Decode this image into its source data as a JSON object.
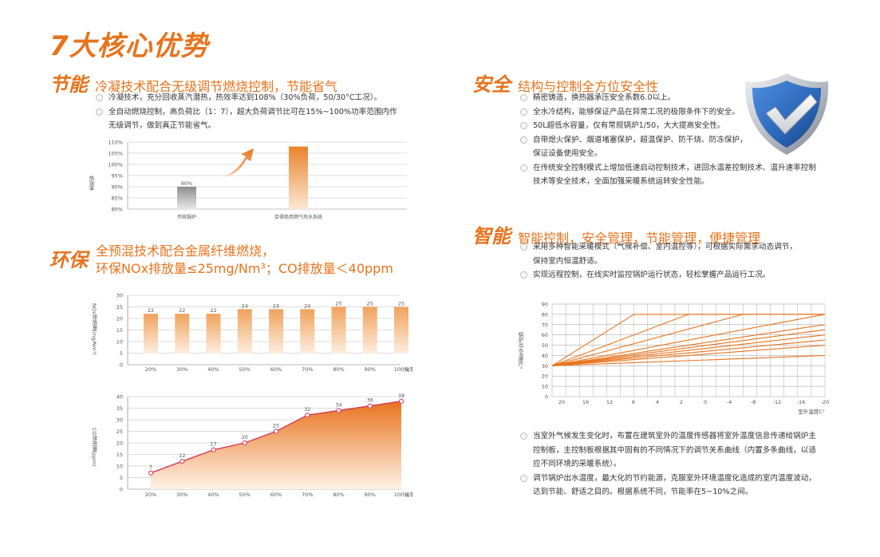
{
  "page_title": "7大核心优势",
  "sections": {
    "energy": {
      "keyword": "节能",
      "subtitle": "冷凝技术配合无级调节燃烧控制，节能省气",
      "bullets": [
        "冷凝技术，充分回收蒸汽潜热，热效率达到108%（30%负荷，50/30°C工况）。",
        "全自动燃烧控制，高负荷比（1：7），超大负荷调节比可在15%~100%功率范围内作",
        "无级调节，做到真正节能省气。"
      ]
    },
    "eco": {
      "keyword": "环保",
      "subtitle_line1": "全预混技术配合金属纤维燃烧，",
      "subtitle_line2": "环保NOx排放量≤25mg/Nm³；CO排放量＜40ppm"
    },
    "safety": {
      "keyword": "安全",
      "subtitle": "结构与控制全方位安全性",
      "bullets": [
        "精密铸造，换热器承压安全系数6.0以上。",
        "全水冷结构，能够保证产品在异常工况的极限条件下的安全。",
        "50L超低水容量，仅有常规锅炉1/50，大大提高安全性。",
        "自带熄火保护、烟道堵塞保护，超温保护、防干烧、防冻保护，",
        "保证设备使用安全。",
        "在传统安全控制模式上增加低速启动控制技术，进回水温差控制技术、温升速率控制",
        "技术等安全技术，全面加强采暖系统运转安全性能。"
      ]
    },
    "smart": {
      "keyword": "智能",
      "subtitle": "智能控制，安全管理，节能管理，便捷管理",
      "bullets_top": [
        "采用多种智能采暖模式（气候补偿、室内温控等），可根据实际需求动态调节，",
        "保持室内恒温舒适。",
        "实现远程控制，在线实时监控锅炉运行状态，轻松掌握产品运行工况。"
      ],
      "bullets_bottom": [
        "当室外气候发生变化时，布置在建筑室外的温度传感器将室外温度信息传递给锅炉主",
        "控制板，主控制板根据其中固有的不同情况下的调节关系曲线（内置多条曲线，以适",
        "应不同环境的采暖系统）。",
        "调节锅炉出水温度，最大化的节约能源，克服室外环境温度化造成的室内温度波动，",
        "达到节能、舒适之目的。根据系统不同，节能率在5~10%之间。"
      ]
    }
  },
  "chart_data": [
    {
      "type": "bar",
      "ylabel": "热效率",
      "categories": [
        "传统锅炉",
        "百得商用燃气热水系统"
      ],
      "values": [
        90,
        108
      ],
      "value_labels": [
        "90%",
        "108%"
      ],
      "ylim": [
        80,
        110
      ],
      "yticks": [
        "80%",
        "85%",
        "90%",
        "95%",
        "100%",
        "105%",
        "110%"
      ],
      "grid": true
    },
    {
      "type": "bar",
      "ylabel": "NOx排放量(mg/Nm³)",
      "xlabel": "功率",
      "categories": [
        "20%",
        "30%",
        "40%",
        "50%",
        "60%",
        "70%",
        "80%",
        "90%",
        "100%"
      ],
      "values": [
        22,
        22,
        22,
        24,
        24,
        24,
        25,
        25,
        25
      ],
      "ylim": [
        0,
        30
      ],
      "yticks": [
        0,
        5,
        10,
        15,
        20,
        25,
        30
      ],
      "grid": true
    },
    {
      "type": "area",
      "ylabel": "CO排放量(ppm)",
      "xlabel": "功率",
      "categories": [
        "20%",
        "30%",
        "40%",
        "50%",
        "60%",
        "70%",
        "80%",
        "90%",
        "100%"
      ],
      "values": [
        7,
        12,
        17,
        20,
        25,
        32,
        34,
        36,
        38
      ],
      "ylim": [
        0,
        40
      ],
      "yticks": [
        0,
        5,
        10,
        15,
        20,
        25,
        30,
        35,
        40
      ],
      "grid": true
    },
    {
      "type": "line",
      "ylabel": "锅炉出水温度C°",
      "xlabel": "室外温度C°",
      "x_ticks": [
        "20",
        "16",
        "12",
        "8",
        "4",
        "2",
        "0",
        "-4",
        "-8",
        "-12",
        "-16",
        "-20"
      ],
      "ylim": [
        0,
        90
      ],
      "yticks": [
        0,
        10,
        20,
        30,
        40,
        50,
        60,
        70,
        80,
        90
      ],
      "series": [
        {
          "points": [
            [
              20,
              30
            ],
            [
              8,
              80
            ],
            [
              -20,
              80
            ]
          ]
        },
        {
          "points": [
            [
              20,
              30
            ],
            [
              0,
              80
            ],
            [
              -20,
              80
            ]
          ]
        },
        {
          "points": [
            [
              20,
              30
            ],
            [
              -8,
              80
            ],
            [
              -20,
              80
            ]
          ]
        },
        {
          "points": [
            [
              20,
              30
            ],
            [
              -20,
              80
            ]
          ]
        },
        {
          "points": [
            [
              20,
              30
            ],
            [
              -20,
              70
            ]
          ]
        },
        {
          "points": [
            [
              20,
              30
            ],
            [
              -20,
              65
            ]
          ]
        },
        {
          "points": [
            [
              20,
              30
            ],
            [
              -20,
              60
            ]
          ]
        },
        {
          "points": [
            [
              20,
              30
            ],
            [
              -20,
              55
            ]
          ]
        },
        {
          "points": [
            [
              20,
              30
            ],
            [
              -20,
              50
            ]
          ]
        },
        {
          "points": [
            [
              20,
              30
            ],
            [
              -20,
              40
            ]
          ]
        }
      ],
      "grid": true
    }
  ],
  "colors": {
    "accent": "#e8731d",
    "bar_orange": "#f0a25c",
    "bar_gray": "#9e9e9e",
    "line_crimson": "#d33a5a",
    "grid": "#bbbbbb",
    "shield_blue": "#2a66b8",
    "shield_silver": "#c8ccd2"
  },
  "icons": [
    "shield-check-icon",
    "arrow-up-right-icon"
  ]
}
